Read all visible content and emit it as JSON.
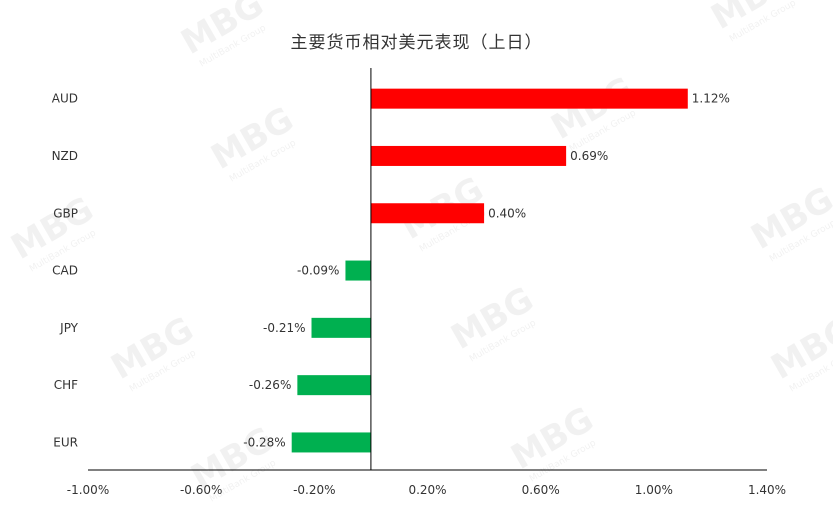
{
  "chart_data": {
    "type": "bar",
    "orientation": "horizontal",
    "title": "主要货币相对美元表现（上日）",
    "categories": [
      "AUD",
      "NZD",
      "GBP",
      "CAD",
      "JPY",
      "CHF",
      "EUR"
    ],
    "values": [
      1.12,
      0.69,
      0.4,
      -0.09,
      -0.21,
      -0.26,
      -0.28
    ],
    "data_labels": [
      "1.12%",
      "0.69%",
      "0.40%",
      "-0.09%",
      "-0.21%",
      "-0.26%",
      "-0.28%"
    ],
    "xlim": [
      -1.0,
      1.4
    ],
    "x_ticks": [
      -1.0,
      -0.6,
      -0.2,
      0.2,
      0.6,
      1.0,
      1.4
    ],
    "x_tick_labels": [
      "-1.00%",
      "-0.60%",
      "-0.20%",
      "0.20%",
      "0.60%",
      "1.00%",
      "1.40%"
    ],
    "grid": false,
    "colors": {
      "positive": "#ff0000",
      "negative": "#00b050",
      "axis": "#000000",
      "text": "#333333"
    }
  },
  "watermark": {
    "brand": "MBG",
    "sub": "MultiBank Group"
  }
}
